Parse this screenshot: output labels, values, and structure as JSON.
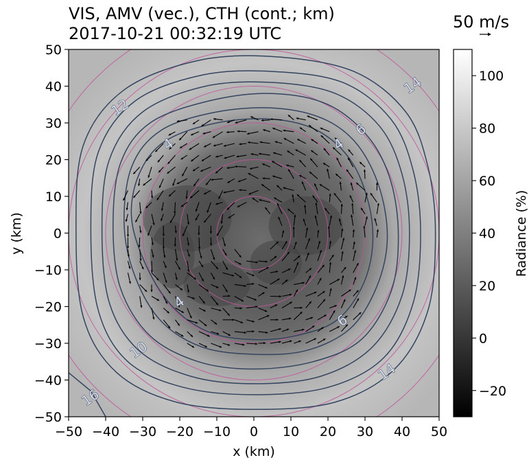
{
  "chart_data": {
    "type": "heatmap",
    "title": "VIS, AMV (vec.), CTH (cont.; km)",
    "subtitle": "2017-10-21 00:32:19 UTC",
    "xlabel": "x (km)",
    "ylabel": "y (km)",
    "xlim": [
      -50,
      50
    ],
    "ylim": [
      -50,
      50
    ],
    "x_ticks": [
      "−50",
      "−40",
      "−30",
      "−20",
      "−10",
      "0",
      "10",
      "20",
      "30",
      "40",
      "50"
    ],
    "y_ticks": [
      "−50",
      "−40",
      "−30",
      "−20",
      "−10",
      "0",
      "10",
      "20",
      "30",
      "40",
      "50"
    ],
    "colorbar": {
      "label": "Radiance (%)",
      "range": [
        -30,
        110
      ],
      "ticks": [
        "−20",
        "0",
        "20",
        "40",
        "60",
        "80",
        "100"
      ],
      "tick_values": [
        -20,
        0,
        20,
        40,
        60,
        80,
        100
      ],
      "colormap": "gray"
    },
    "vector_key": {
      "label": "50 m/s",
      "speed": 50
    },
    "contour_labels": [
      {
        "text": "12",
        "x": -36,
        "y": 34
      },
      {
        "text": "14",
        "x": 43,
        "y": 40
      },
      {
        "text": "6",
        "x": 29,
        "y": 28
      },
      {
        "text": "4",
        "x": 23,
        "y": 24
      },
      {
        "text": "4",
        "x": -23,
        "y": 24
      },
      {
        "text": "4",
        "x": -20,
        "y": -19
      },
      {
        "text": "6",
        "x": 24,
        "y": -24
      },
      {
        "text": "10",
        "x": -31,
        "y": -32
      },
      {
        "text": "14",
        "x": 36,
        "y": -38
      },
      {
        "text": "16",
        "x": -44,
        "y": -45
      }
    ],
    "cth_contours": [
      {
        "level": 4,
        "points": [
          [
            -31,
            16
          ],
          [
            -24,
            25
          ],
          [
            -10,
            30
          ],
          [
            5,
            31
          ],
          [
            17,
            28
          ],
          [
            26,
            20
          ],
          [
            31,
            8
          ],
          [
            32,
            -4
          ],
          [
            29,
            -15
          ],
          [
            22,
            -24
          ],
          [
            11,
            -28
          ],
          [
            0,
            -29
          ],
          [
            -12,
            -27
          ],
          [
            -22,
            -20
          ],
          [
            -29,
            -9
          ],
          [
            -33,
            4
          ]
        ]
      },
      {
        "level": 6,
        "points": [
          [
            -33,
            18
          ],
          [
            -25,
            28
          ],
          [
            -10,
            33
          ],
          [
            6,
            34
          ],
          [
            19,
            31
          ],
          [
            28,
            24
          ],
          [
            34,
            12
          ],
          [
            36,
            -2
          ],
          [
            33,
            -15
          ],
          [
            26,
            -26
          ],
          [
            14,
            -32
          ],
          [
            0,
            -33
          ],
          [
            -14,
            -31
          ],
          [
            -25,
            -24
          ],
          [
            -32,
            -12
          ],
          [
            -35,
            2
          ]
        ]
      },
      {
        "level": 8,
        "points": [
          [
            -36,
            19
          ],
          [
            -28,
            30
          ],
          [
            -12,
            36
          ],
          [
            5,
            38
          ],
          [
            20,
            35
          ],
          [
            31,
            26
          ],
          [
            37,
            14
          ],
          [
            39,
            -1
          ],
          [
            37,
            -16
          ],
          [
            29,
            -29
          ],
          [
            16,
            -35
          ],
          [
            0,
            -37
          ],
          [
            -15,
            -35
          ],
          [
            -28,
            -28
          ],
          [
            -36,
            -15
          ],
          [
            -38,
            2
          ]
        ]
      },
      {
        "level": 10,
        "points": [
          [
            -39,
            20
          ],
          [
            -30,
            33
          ],
          [
            -13,
            40
          ],
          [
            5,
            41
          ],
          [
            22,
            38
          ],
          [
            34,
            29
          ],
          [
            40,
            16
          ],
          [
            42,
            0
          ],
          [
            40,
            -17
          ],
          [
            32,
            -31
          ],
          [
            18,
            -39
          ],
          [
            0,
            -41
          ],
          [
            -17,
            -39
          ],
          [
            -31,
            -32
          ],
          [
            -39,
            -19
          ],
          [
            -41,
            1
          ]
        ]
      },
      {
        "level": 12,
        "points": [
          [
            -42,
            22
          ],
          [
            -32,
            36
          ],
          [
            -14,
            43
          ],
          [
            5,
            44
          ],
          [
            24,
            41
          ],
          [
            37,
            31
          ],
          [
            43,
            17
          ],
          [
            45,
            0
          ],
          [
            43,
            -19
          ],
          [
            35,
            -34
          ],
          [
            20,
            -42
          ],
          [
            0,
            -44
          ],
          [
            -19,
            -42
          ],
          [
            -34,
            -35
          ],
          [
            -42,
            -21
          ],
          [
            -44,
            1
          ]
        ]
      },
      {
        "level": 14,
        "points": [
          [
            -46,
            24
          ],
          [
            -35,
            39
          ],
          [
            -15,
            47
          ],
          [
            6,
            48
          ],
          [
            27,
            44
          ],
          [
            41,
            33
          ],
          [
            47,
            18
          ],
          [
            49,
            0
          ],
          [
            47,
            -21
          ],
          [
            38,
            -37
          ],
          [
            22,
            -46
          ],
          [
            0,
            -48
          ],
          [
            -21,
            -46
          ],
          [
            -37,
            -38
          ],
          [
            -46,
            -23
          ],
          [
            -48,
            1
          ]
        ]
      },
      {
        "level": 16,
        "points": [
          [
            -50,
            -38
          ],
          [
            -44,
            -43
          ],
          [
            -40,
            -50
          ]
        ]
      }
    ],
    "rings": {
      "center": [
        0,
        0
      ],
      "radii_km": [
        10,
        20,
        30,
        40,
        50,
        60
      ]
    }
  }
}
